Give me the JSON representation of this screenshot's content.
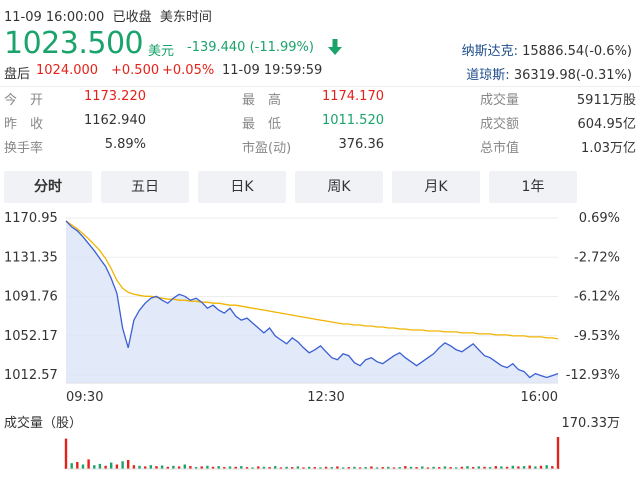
{
  "header": {
    "timestamp": "11-09 16:00:00",
    "market_status": "已收盘",
    "timezone": "美东时间",
    "price": "1023.500",
    "currency": "美元",
    "change": "-139.440 (-11.99%)",
    "direction_icon": "arrow-down-icon",
    "after_hours_label": "盘后",
    "after_hours_price": "1024.000",
    "after_hours_change": "+0.500",
    "after_hours_pct": "+0.05%",
    "after_hours_time": "11-09 19:59:59"
  },
  "indices": [
    {
      "name": "纳斯达克:",
      "value": "15886.54(-0.6%)"
    },
    {
      "name": "道琼斯:",
      "value": "36319.98(-0.31%)"
    }
  ],
  "stats": [
    {
      "label": "今　开",
      "value": "1173.220",
      "color": "#e2231a"
    },
    {
      "label": "最　高",
      "value": "1174.170",
      "color": "#e2231a"
    },
    {
      "label": "成交量",
      "value": "5911万股",
      "color": "#333333"
    },
    {
      "label": "昨　收",
      "value": "1162.940",
      "color": "#333333"
    },
    {
      "label": "最　低",
      "value": "1011.520",
      "color": "#1aa36b"
    },
    {
      "label": "成交额",
      "value": "604.95亿",
      "color": "#333333"
    },
    {
      "label": "换手率",
      "value": "5.89%",
      "color": "#333333"
    },
    {
      "label": "市盈(动)",
      "value": "376.36",
      "color": "#333333"
    },
    {
      "label": "总市值",
      "value": "1.03万亿",
      "color": "#333333"
    }
  ],
  "tabs": [
    "分时",
    "五日",
    "日K",
    "周K",
    "月K",
    "1年"
  ],
  "active_tab": 0,
  "colors": {
    "up": "#e2231a",
    "down": "#1aa36b",
    "price_line": "#3b5fd4",
    "avg_line": "#f0b400",
    "area": "#dbe3f7"
  },
  "chart_data": {
    "type": "line",
    "y_labels": [
      "1170.95",
      "1131.35",
      "1091.76",
      "1052.17",
      "1012.57"
    ],
    "pct_labels": [
      "0.69%",
      "-2.72%",
      "-6.12%",
      "-9.53%",
      "-12.93%"
    ],
    "ylim": [
      1012.57,
      1170.95
    ],
    "x_labels": [
      "09:30",
      "12:30",
      "16:00"
    ],
    "volume_label": "成交量（股）",
    "volume_max": "170.33万",
    "series": [
      {
        "values": [
          1168,
          1162,
          1158,
          1152,
          1145,
          1138,
          1130,
          1122,
          1110,
          1095,
          1060,
          1040,
          1068,
          1078,
          1085,
          1090,
          1092,
          1088,
          1085,
          1090,
          1094,
          1092,
          1088,
          1090,
          1086,
          1080,
          1083,
          1078,
          1075,
          1080,
          1072,
          1068,
          1070,
          1065,
          1060,
          1055,
          1060,
          1052,
          1048,
          1044,
          1050,
          1046,
          1040,
          1035,
          1038,
          1042,
          1036,
          1030,
          1028,
          1034,
          1032,
          1025,
          1022,
          1028,
          1030,
          1026,
          1024,
          1028,
          1032,
          1035,
          1030,
          1026,
          1022,
          1026,
          1030,
          1034,
          1040,
          1045,
          1042,
          1038,
          1036,
          1040,
          1044,
          1038,
          1032,
          1030,
          1026,
          1022,
          1020,
          1024,
          1018,
          1016,
          1010,
          1014,
          1012,
          1010,
          1012,
          1014
        ]
      },
      {
        "values": [
          1168,
          1164,
          1160,
          1155,
          1150,
          1144,
          1138,
          1130,
          1120,
          1108,
          1100,
          1096,
          1094,
          1093,
          1092,
          1092,
          1091,
          1090,
          1089,
          1089,
          1088,
          1088,
          1087,
          1087,
          1086,
          1086,
          1085,
          1085,
          1084,
          1083,
          1083,
          1082,
          1081,
          1080,
          1079,
          1078,
          1077,
          1076,
          1075,
          1074,
          1073,
          1072,
          1071,
          1070,
          1069,
          1068,
          1067,
          1066,
          1065,
          1064,
          1064,
          1063,
          1063,
          1062,
          1062,
          1061,
          1061,
          1060,
          1060,
          1059,
          1059,
          1058,
          1058,
          1058,
          1057,
          1057,
          1057,
          1056,
          1056,
          1056,
          1055,
          1055,
          1055,
          1054,
          1054,
          1054,
          1053,
          1053,
          1053,
          1052,
          1052,
          1052,
          1051,
          1051,
          1051,
          1050,
          1050,
          1049
        ]
      }
    ],
    "volume": [
      95,
      18,
      22,
      14,
      30,
      12,
      16,
      10,
      20,
      14,
      24,
      28,
      12,
      10,
      8,
      12,
      9,
      11,
      7,
      10,
      8,
      14,
      9,
      6,
      8,
      10,
      7,
      9,
      6,
      8,
      7,
      9,
      6,
      5,
      8,
      7,
      6,
      9,
      5,
      7,
      6,
      8,
      5,
      7,
      6,
      5,
      7,
      6,
      8,
      5,
      6,
      7,
      5,
      6,
      8,
      5,
      6,
      7,
      5,
      6,
      9,
      7,
      6,
      8,
      5,
      7,
      6,
      8,
      6,
      5,
      7,
      9,
      6,
      8,
      7,
      6,
      9,
      8,
      7,
      10,
      8,
      9,
      11,
      8,
      10,
      12,
      9,
      100
    ],
    "volume_dir": [
      "u",
      "d",
      "u",
      "d",
      "u",
      "d",
      "d",
      "u",
      "d",
      "u",
      "d",
      "u",
      "u",
      "d",
      "u",
      "d",
      "u",
      "d",
      "u",
      "d",
      "u",
      "d",
      "u",
      "d",
      "u",
      "d",
      "u",
      "d",
      "u",
      "d",
      "u",
      "d",
      "u",
      "d",
      "u",
      "d",
      "u",
      "d",
      "u",
      "d",
      "u",
      "d",
      "u",
      "d",
      "u",
      "d",
      "u",
      "d",
      "u",
      "d",
      "u",
      "d",
      "u",
      "d",
      "u",
      "d",
      "u",
      "d",
      "u",
      "d",
      "u",
      "d",
      "u",
      "d",
      "u",
      "d",
      "u",
      "d",
      "u",
      "d",
      "u",
      "d",
      "u",
      "d",
      "u",
      "d",
      "u",
      "d",
      "u",
      "d",
      "u",
      "d",
      "u",
      "d",
      "u",
      "d",
      "u",
      "u"
    ]
  }
}
